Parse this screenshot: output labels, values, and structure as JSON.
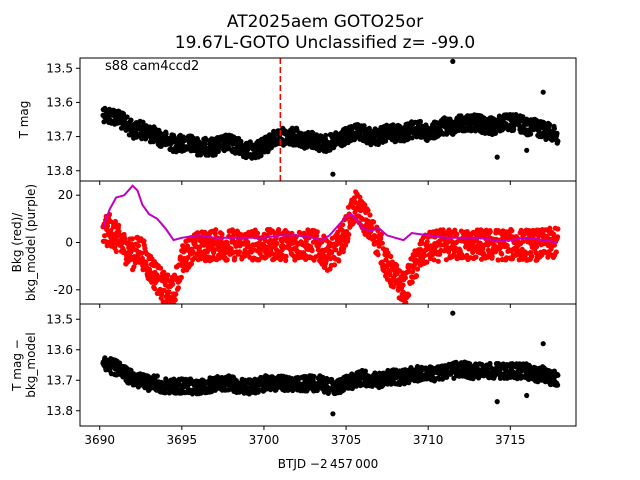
{
  "chart_data": {
    "type": "scatter",
    "title": [
      "AT2025aem  GOTO25or",
      "19.67L-GOTO Unclassified z= -99.0"
    ],
    "xlabel": "BTJD −2 457 000",
    "xlim": [
      3688.8,
      3719.0
    ],
    "xticks": [
      3690,
      3695,
      3700,
      3705,
      3710,
      3715
    ],
    "vline_x": 3701.0,
    "panels": [
      {
        "id": "tmag",
        "ylabel": [
          "T mag"
        ],
        "annotation": "s88 cam4ccd2",
        "ylim": [
          13.55,
          13.755
        ],
        "ylim_display": [
          13.83,
          13.47
        ],
        "yticks": [
          13.5,
          13.6,
          13.7,
          13.8
        ],
        "series": [
          {
            "color": "#000000",
            "role": "flux",
            "x": [
              3690.2,
              3690.5,
              3691,
              3691.5,
              3692,
              3692.5,
              3693,
              3693.5,
              3694,
              3694.5,
              3695,
              3695.5,
              3696,
              3696.5,
              3697,
              3697.5,
              3698,
              3698.5,
              3699,
              3699.5,
              3700,
              3700.5,
              3701,
              3701.5,
              3702,
              3702.5,
              3703,
              3703.5,
              3704,
              3704.5,
              3705,
              3705.5,
              3706,
              3706.5,
              3707,
              3707.5,
              3708,
              3708.5,
              3709,
              3709.5,
              3710,
              3710.5,
              3711,
              3711.5,
              3712,
              3712.5,
              3713,
              3713.5,
              3714,
              3714.5,
              3715,
              3715.5,
              3716,
              3716.5,
              3717,
              3717.5,
              3717.9
            ],
            "y": [
              13.63,
              13.64,
              13.64,
              13.66,
              13.68,
              13.68,
              13.69,
              13.7,
              13.71,
              13.72,
              13.72,
              13.72,
              13.73,
              13.73,
              13.73,
              13.72,
              13.72,
              13.73,
              13.74,
              13.74,
              13.73,
              13.71,
              13.7,
              13.7,
              13.7,
              13.71,
              13.71,
              13.72,
              13.72,
              13.71,
              13.7,
              13.69,
              13.69,
              13.7,
              13.7,
              13.69,
              13.69,
              13.69,
              13.68,
              13.68,
              13.69,
              13.68,
              13.67,
              13.67,
              13.66,
              13.66,
              13.66,
              13.67,
              13.67,
              13.66,
              13.66,
              13.66,
              13.67,
              13.67,
              13.68,
              13.69,
              13.7
            ],
            "outliers": [
              [
                3711.5,
                13.48
              ],
              [
                3717.0,
                13.57
              ],
              [
                3704.2,
                13.81
              ],
              [
                3714.2,
                13.76
              ],
              [
                3716.0,
                13.74
              ]
            ]
          }
        ]
      },
      {
        "id": "bkg",
        "ylabel": [
          "Bkg (red)/",
          "bkg_model (purple)"
        ],
        "ylim_display": [
          -26,
          26
        ],
        "yticks": [
          20,
          0,
          -20
        ],
        "series": [
          {
            "color": "#ff0000",
            "role": "background",
            "x": [
              3690.2,
              3690.6,
              3691,
              3691.5,
              3692,
              3692.5,
              3693,
              3693.5,
              3694,
              3694.5,
              3695,
              3695.5,
              3696,
              3697,
              3698,
              3699,
              3700,
              3701,
              3702,
              3703,
              3703.5,
              3704,
              3704.5,
              3705,
              3705.3,
              3705.6,
              3706,
              3706.3,
              3706.6,
              3707,
              3707.5,
              3708,
              3708.3,
              3708.6,
              3709,
              3709.5,
              3710,
              3711,
              3712,
              3713,
              3714,
              3715,
              3716,
              3717,
              3717.9
            ],
            "y": [
              3,
              6,
              2,
              -2,
              -5,
              -3,
              -10,
              -15,
              -20,
              -21,
              -8,
              -3,
              -2,
              -1,
              -1,
              -1,
              -1,
              -1,
              -1,
              -1,
              -3,
              -6,
              -2,
              5,
              12,
              15,
              12,
              8,
              4,
              0,
              -10,
              -15,
              -18,
              -20,
              -12,
              -6,
              -2,
              -1,
              -1,
              -1,
              -1,
              -1,
              -1,
              -1,
              0
            ],
            "spread": 6
          },
          {
            "color": "#c000c0",
            "role": "model",
            "x": [
              3690.2,
              3690.6,
              3691,
              3691.5,
              3692,
              3692.3,
              3692.6,
              3693,
              3693.5,
              3694,
              3694.5,
              3695,
              3696,
              3697,
              3698,
              3699,
              3700,
              3701,
              3702,
              3703,
              3703.5,
              3704,
              3704.5,
              3705,
              3705.3,
              3705.6,
              3706,
              3706.5,
              3707,
              3707.5,
              3708,
              3708.5,
              3709,
              3710,
              3711,
              3712,
              3713,
              3714,
              3715,
              3716,
              3717,
              3717.9
            ],
            "y": [
              6,
              14,
              19,
              20,
              24,
              22,
              16,
              12,
              10,
              6,
              1,
              2,
              3,
              2,
              2,
              2,
              2,
              3,
              3,
              2,
              1,
              3,
              7,
              11,
              12,
              10,
              6,
              5,
              6,
              3,
              2,
              1,
              4,
              3,
              2,
              2,
              2,
              1,
              1,
              2,
              1,
              0
            ]
          }
        ]
      },
      {
        "id": "tmag_corr",
        "ylabel": [
          "T mag −",
          "bkg_model"
        ],
        "ylim_display": [
          13.85,
          13.45
        ],
        "yticks": [
          13.5,
          13.6,
          13.7,
          13.8
        ],
        "series": [
          {
            "color": "#000000",
            "role": "corrected",
            "x": [
              3690.2,
              3690.5,
              3691,
              3691.5,
              3692,
              3692.5,
              3693,
              3693.5,
              3694,
              3694.5,
              3695,
              3695.5,
              3696,
              3696.5,
              3697,
              3697.5,
              3698,
              3698.5,
              3699,
              3699.5,
              3700,
              3700.5,
              3701,
              3701.5,
              3702,
              3702.5,
              3703,
              3703.5,
              3704,
              3704.5,
              3705,
              3705.5,
              3706,
              3706.5,
              3707,
              3707.5,
              3708,
              3708.5,
              3709,
              3709.5,
              3710,
              3710.5,
              3711,
              3711.5,
              3712,
              3712.5,
              3713,
              3713.5,
              3714,
              3714.5,
              3715,
              3715.5,
              3716,
              3716.5,
              3717,
              3717.5,
              3717.9
            ],
            "y": [
              13.64,
              13.65,
              13.66,
              13.68,
              13.69,
              13.7,
              13.71,
              13.71,
              13.72,
              13.72,
              13.72,
              13.72,
              13.72,
              13.72,
              13.71,
              13.71,
              13.71,
              13.72,
              13.72,
              13.72,
              13.71,
              13.71,
              13.71,
              13.71,
              13.71,
              13.71,
              13.71,
              13.71,
              13.72,
              13.72,
              13.71,
              13.7,
              13.69,
              13.7,
              13.7,
              13.69,
              13.69,
              13.69,
              13.68,
              13.68,
              13.68,
              13.68,
              13.67,
              13.67,
              13.66,
              13.67,
              13.67,
              13.67,
              13.67,
              13.67,
              13.67,
              13.67,
              13.67,
              13.68,
              13.68,
              13.69,
              13.7
            ],
            "outliers": [
              [
                3711.5,
                13.48
              ],
              [
                3717.0,
                13.58
              ],
              [
                3704.2,
                13.81
              ],
              [
                3714.2,
                13.77
              ],
              [
                3716.0,
                13.75
              ]
            ]
          }
        ]
      }
    ]
  }
}
